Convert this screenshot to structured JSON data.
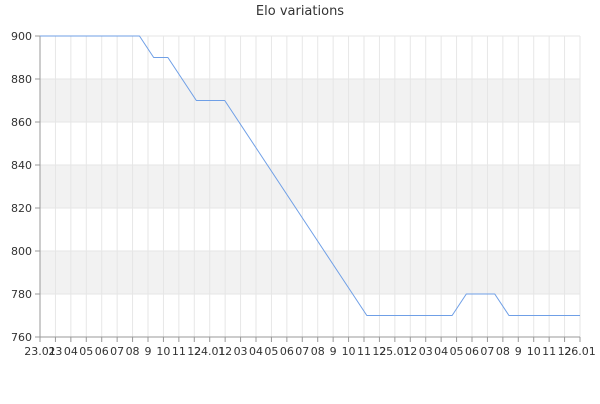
{
  "chart_data": {
    "type": "line",
    "title": "Elo variations",
    "xlabel": "",
    "ylabel": "",
    "ylim": [
      760,
      900
    ],
    "yticks": [
      760,
      780,
      800,
      820,
      840,
      860,
      880,
      900
    ],
    "x_tick_labels": [
      "23.01",
      "23",
      "04",
      "05",
      "06",
      "07",
      "08",
      "9",
      "10",
      "11",
      "12",
      "24.01",
      "12",
      "03",
      "04",
      "05",
      "06",
      "07",
      "08",
      "9",
      "10",
      "11",
      "12",
      "25.01",
      "12",
      "03",
      "04",
      "05",
      "06",
      "07",
      "08",
      "9",
      "10",
      "11",
      "12",
      "26.01"
    ],
    "grid": true,
    "alternating_bands": true,
    "colors": {
      "line": "#6f9fe6",
      "band": "#f2f2f2",
      "grid": "#e6e6e6",
      "axis": "#999999",
      "text": "#333333"
    },
    "series": [
      {
        "values": [
          900,
          900,
          900,
          900,
          900,
          900,
          900,
          900,
          890,
          890,
          880,
          870,
          870,
          870,
          860,
          850,
          840,
          830,
          820,
          810,
          800,
          790,
          780,
          770,
          770,
          770,
          770,
          770,
          770,
          770,
          780,
          780,
          780,
          770,
          770,
          770,
          770,
          770,
          770
        ]
      }
    ]
  }
}
